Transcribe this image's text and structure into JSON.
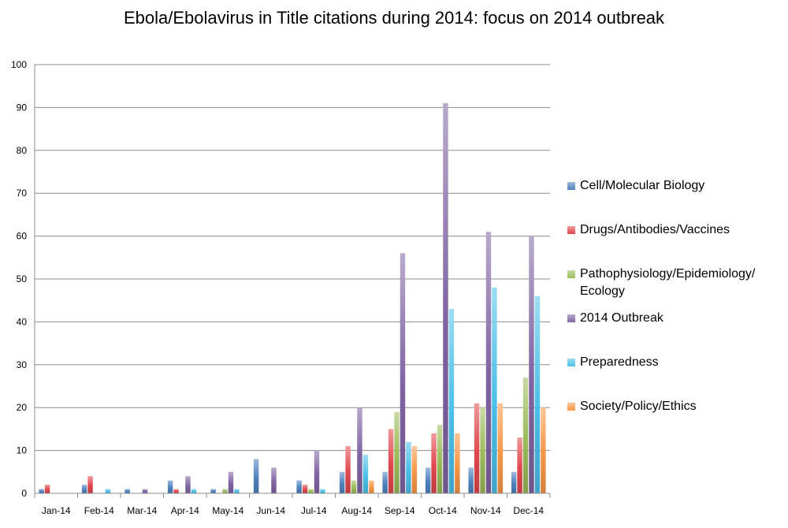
{
  "chart_data": {
    "type": "bar",
    "title": "Ebola/Ebolavirus in Title citations during 2014: focus on 2014 outbreak",
    "xlabel": "",
    "ylabel": "",
    "ylim": [
      0,
      100
    ],
    "yticks": [
      0,
      10,
      20,
      30,
      40,
      50,
      60,
      70,
      80,
      90,
      100
    ],
    "grid": true,
    "legend_position": "right",
    "categories": [
      "Jan-14",
      "Feb-14",
      "Mar-14",
      "Apr-14",
      "May-14",
      "Jun-14",
      "Jul-14",
      "Aug-14",
      "Sep-14",
      "Oct-14",
      "Nov-14",
      "Dec-14"
    ],
    "series": [
      {
        "name": "Cell/Molecular Biology",
        "color": "#4f81bd",
        "values": [
          1,
          2,
          1,
          3,
          1,
          8,
          3,
          5,
          5,
          6,
          6,
          5
        ]
      },
      {
        "name": "Drugs/Antibodies/Vaccines",
        "color": "#e0474c",
        "values": [
          2,
          4,
          0,
          1,
          0,
          0,
          2,
          11,
          15,
          14,
          21,
          13
        ]
      },
      {
        "name": "Pathophysiology/Epidemiology/ Ecology",
        "color": "#9bbb59",
        "values": [
          0,
          0,
          0,
          0,
          1,
          0,
          1,
          3,
          19,
          16,
          20,
          27
        ]
      },
      {
        "name": "2014 Outbreak",
        "color": "#8064a2",
        "values": [
          0,
          0,
          1,
          4,
          5,
          6,
          10,
          20,
          56,
          91,
          61,
          60
        ]
      },
      {
        "name": "Preparedness",
        "color": "#4bc0e8",
        "values": [
          0,
          1,
          0,
          1,
          1,
          0,
          1,
          9,
          12,
          43,
          48,
          46
        ]
      },
      {
        "name": "Society/Policy/Ethics",
        "color": "#f79646",
        "values": [
          0,
          0,
          0,
          0,
          0,
          0,
          0,
          3,
          11,
          14,
          21,
          20
        ]
      }
    ]
  }
}
